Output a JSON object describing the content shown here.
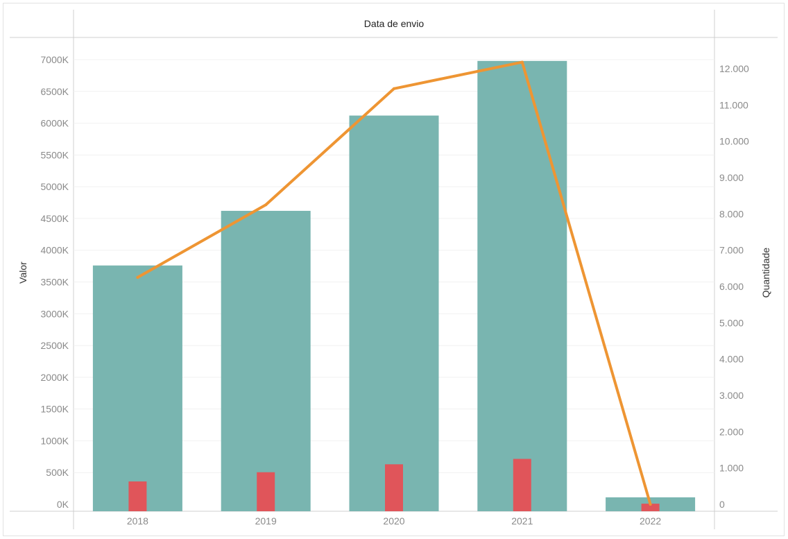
{
  "chart_data": {
    "type": "bar",
    "title": "",
    "header": "Data de envio",
    "categories": [
      "2018",
      "2019",
      "2020",
      "2021",
      "2022"
    ],
    "ylabel_left": "Valor",
    "ylabel_right": "Quantidade",
    "ylim_left": [
      0,
      7000
    ],
    "ylim_right": [
      0,
      12000
    ],
    "left_ticks": [
      "0K",
      "500K",
      "1000K",
      "1500K",
      "2000K",
      "2500K",
      "3000K",
      "3500K",
      "4000K",
      "4500K",
      "5000K",
      "5500K",
      "6000K",
      "6500K",
      "7000K"
    ],
    "right_ticks": [
      "0",
      "1.000",
      "2.000",
      "3.000",
      "4.000",
      "5.000",
      "6.000",
      "7.000",
      "8.000",
      "9.000",
      "10.000",
      "11.000",
      "12.000"
    ],
    "series": [
      {
        "kind": "bar",
        "axis": "left",
        "color": "#79b5b0",
        "values": [
          3760,
          4620,
          6120,
          6980,
          110
        ]
      },
      {
        "kind": "bar",
        "axis": "left",
        "color": "#e0555a",
        "values": [
          360,
          505,
          630,
          715,
          10
        ]
      },
      {
        "kind": "line",
        "axis": "right",
        "color": "#ee9533",
        "values": [
          6250,
          8250,
          11450,
          12180,
          0
        ]
      }
    ],
    "grid": true
  }
}
